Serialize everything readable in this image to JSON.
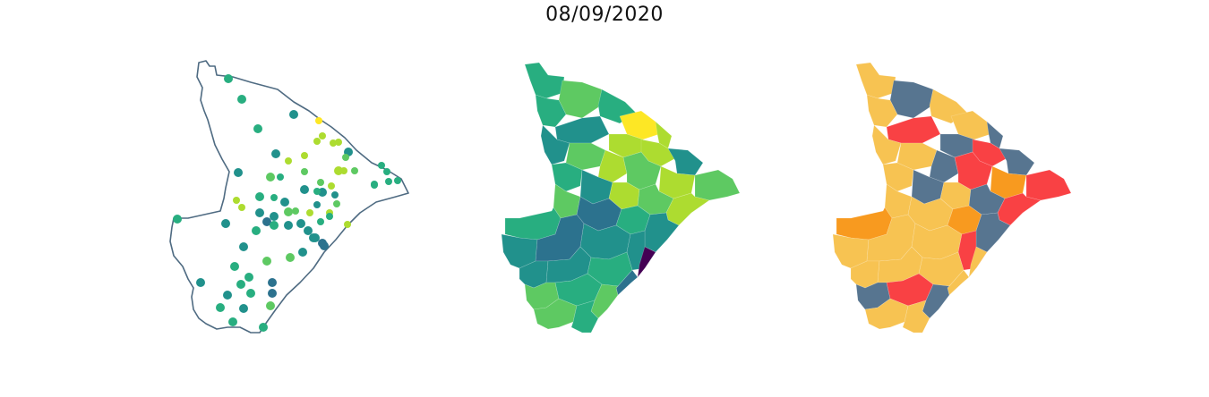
{
  "figure": {
    "title": "08/09/2020"
  },
  "palette": {
    "outline": "#4f6b82",
    "viridis": [
      "#440154",
      "#3b528b",
      "#2c728e",
      "#21918c",
      "#28ae80",
      "#5ec962",
      "#addc30",
      "#fde725"
    ],
    "categorical": {
      "low": "#f7c352",
      "medium": "#f89a1f",
      "high": "#f94144",
      "other": "#577590"
    }
  },
  "panels": [
    {
      "name": "points-map",
      "kind": "scatter-on-outline"
    },
    {
      "name": "choropleth-continuous",
      "kind": "choropleth"
    },
    {
      "name": "choropleth-categorical",
      "kind": "choropleth"
    }
  ]
}
